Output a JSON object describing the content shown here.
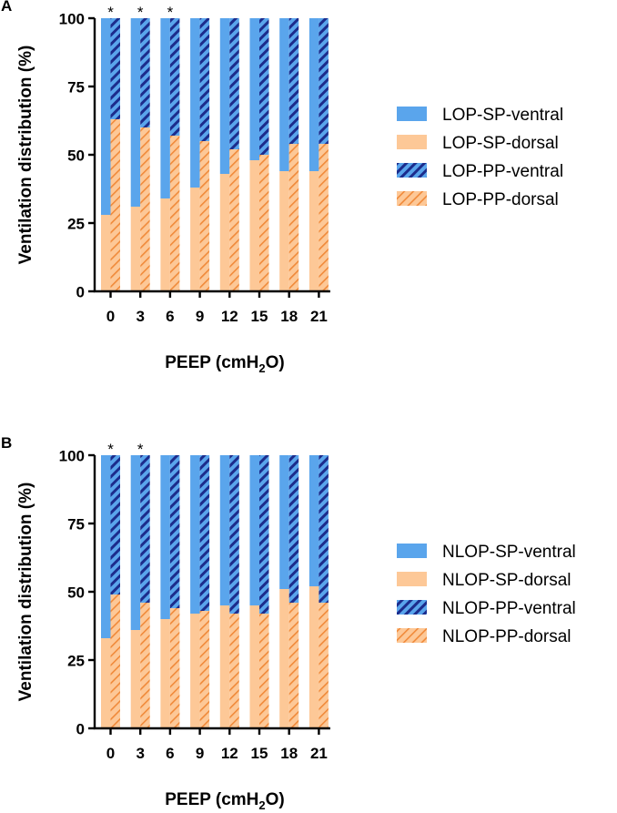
{
  "chart_data": [
    {
      "panel_label": "A",
      "type": "bar",
      "stacked": true,
      "xlabel_parts": [
        "PEEP (cmH",
        "2",
        "O)"
      ],
      "ylabel": "Ventilation distribution (%)",
      "ylim": [
        0,
        100
      ],
      "yticks": [
        "0",
        "25",
        "50",
        "75",
        "100"
      ],
      "yticks_values": [
        0,
        25,
        50,
        75,
        100
      ],
      "categories": [
        "0",
        "3",
        "6",
        "9",
        "12",
        "15",
        "18",
        "21"
      ],
      "significance": [
        "*",
        "*",
        "*",
        "",
        "",
        "",
        "",
        ""
      ],
      "series": [
        {
          "name": "LOP-SP-ventral",
          "group": "SP",
          "part": "ventral",
          "color": "#5aa5ec",
          "pattern": "solid",
          "values": [
            72,
            69,
            66,
            62,
            57,
            52,
            56,
            56
          ]
        },
        {
          "name": "LOP-SP-dorsal",
          "group": "SP",
          "part": "dorsal",
          "color": "#fdc897",
          "pattern": "solid",
          "values": [
            28,
            31,
            34,
            38,
            43,
            48,
            44,
            44
          ]
        },
        {
          "name": "LOP-PP-ventral",
          "group": "PP",
          "part": "ventral",
          "color": "#5aa5ec",
          "pattern": "hatch",
          "values": [
            37,
            40,
            43,
            45,
            48,
            50,
            46,
            46
          ]
        },
        {
          "name": "LOP-PP-dorsal",
          "group": "PP",
          "part": "dorsal",
          "color": "#fdc897",
          "pattern": "hatch",
          "values": [
            63,
            60,
            57,
            55,
            52,
            50,
            54,
            54
          ]
        }
      ]
    },
    {
      "panel_label": "B",
      "type": "bar",
      "stacked": true,
      "xlabel_parts": [
        "PEEP (cmH",
        "2",
        "O)"
      ],
      "ylabel": "Ventilation distribution (%)",
      "ylim": [
        0,
        100
      ],
      "yticks": [
        "0",
        "25",
        "50",
        "75",
        "100"
      ],
      "yticks_values": [
        0,
        25,
        50,
        75,
        100
      ],
      "categories": [
        "0",
        "3",
        "6",
        "9",
        "12",
        "15",
        "18",
        "21"
      ],
      "significance": [
        "*",
        "*",
        "",
        "",
        "",
        "",
        "",
        ""
      ],
      "series": [
        {
          "name": "NLOP-SP-ventral",
          "group": "SP",
          "part": "ventral",
          "color": "#5aa5ec",
          "pattern": "solid",
          "values": [
            67,
            64,
            60,
            58,
            55,
            55,
            49,
            48
          ]
        },
        {
          "name": "NLOP-SP-dorsal",
          "group": "SP",
          "part": "dorsal",
          "color": "#fdc897",
          "pattern": "solid",
          "values": [
            33,
            36,
            40,
            42,
            45,
            45,
            51,
            52
          ]
        },
        {
          "name": "NLOP-PP-ventral",
          "group": "PP",
          "part": "ventral",
          "color": "#5aa5ec",
          "pattern": "hatch",
          "values": [
            51,
            54,
            56,
            57,
            58,
            58,
            54,
            54
          ]
        },
        {
          "name": "NLOP-PP-dorsal",
          "group": "PP",
          "part": "dorsal",
          "color": "#fdc897",
          "pattern": "hatch",
          "values": [
            49,
            46,
            44,
            43,
            42,
            42,
            46,
            46
          ]
        }
      ]
    }
  ]
}
